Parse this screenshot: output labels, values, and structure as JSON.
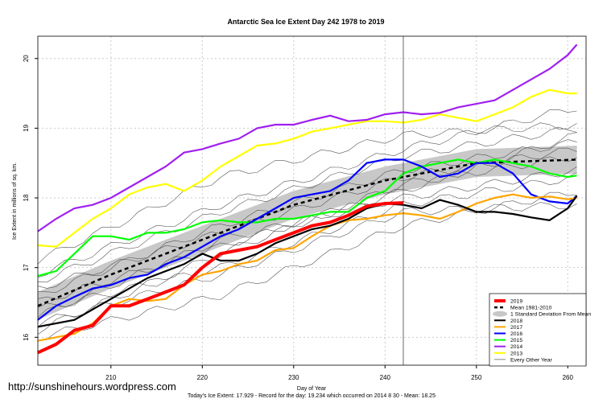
{
  "chart_data": {
    "type": "line",
    "title": "Antarctic Sea Ice Extent Day 242 1978 to 2019",
    "xlabel": "Day of Year",
    "ylabel": "Ice Extent in millions of sq. km.",
    "xlim": [
      202,
      262
    ],
    "ylim": [
      15.6,
      20.32
    ],
    "xticks": [
      210,
      220,
      230,
      240,
      250,
      260
    ],
    "yticks": [
      16,
      17,
      18,
      19,
      20
    ],
    "vline_day": 242,
    "grid": "dotted",
    "legend_position": "bottom-right",
    "footer": "Today's Ice Extent: 17.929  - Record for the day: 19.234 which occurred on 2014 8 30  - Mean: 18.25",
    "watermark": "http://sunshinehours.wordpress.com",
    "mean": {
      "name": "Mean 1981-2010",
      "x": [
        202,
        210,
        220,
        230,
        240,
        250,
        261
      ],
      "y": [
        16.45,
        16.9,
        17.4,
        17.9,
        18.25,
        18.5,
        18.55
      ]
    },
    "band": {
      "name": "1 Standard Deviation From Mean",
      "color": "#c8c8c8",
      "sd": 0.2
    },
    "series": [
      {
        "name": "2019",
        "color": "#ff0000",
        "x": [
          202,
          204,
          206,
          208,
          210,
          212,
          214,
          216,
          218,
          220,
          222,
          224,
          226,
          228,
          230,
          232,
          234,
          236,
          238,
          240,
          242
        ],
        "y": [
          15.78,
          15.9,
          16.1,
          16.17,
          16.45,
          16.45,
          16.55,
          16.65,
          16.75,
          17.0,
          17.2,
          17.25,
          17.3,
          17.4,
          17.5,
          17.6,
          17.65,
          17.75,
          17.88,
          17.92,
          17.93
        ]
      },
      {
        "name": "2018",
        "color": "#000000",
        "x": [
          202,
          206,
          210,
          214,
          218,
          220,
          222,
          224,
          226,
          228,
          230,
          232,
          234,
          236,
          238,
          240,
          242,
          244,
          246,
          248,
          250,
          252,
          254,
          256,
          258,
          260,
          261
        ],
        "y": [
          16.15,
          16.25,
          16.55,
          16.85,
          17.05,
          17.2,
          17.1,
          17.1,
          17.2,
          17.35,
          17.45,
          17.55,
          17.6,
          17.7,
          17.85,
          17.92,
          17.9,
          17.85,
          17.97,
          17.9,
          17.8,
          17.8,
          17.77,
          17.72,
          17.68,
          17.85,
          18.03
        ]
      },
      {
        "name": "2017",
        "color": "#ffa500",
        "x": [
          202,
          206,
          208,
          210,
          212,
          214,
          216,
          218,
          220,
          222,
          224,
          226,
          228,
          230,
          232,
          234,
          236,
          238,
          240,
          242,
          244,
          246,
          248,
          250,
          252,
          254,
          256,
          258,
          260,
          261
        ],
        "y": [
          15.95,
          16.05,
          16.2,
          16.45,
          16.55,
          16.52,
          16.55,
          16.75,
          16.9,
          16.95,
          17.05,
          17.1,
          17.25,
          17.28,
          17.45,
          17.6,
          17.68,
          17.7,
          17.75,
          17.78,
          17.75,
          17.7,
          17.8,
          17.92,
          18.0,
          18.05,
          18.0,
          18.02,
          17.98,
          18.0
        ]
      },
      {
        "name": "2016",
        "color": "#0000ff",
        "x": [
          202,
          204,
          206,
          208,
          210,
          212,
          214,
          216,
          218,
          220,
          222,
          224,
          226,
          228,
          230,
          232,
          234,
          236,
          238,
          240,
          242,
          244,
          246,
          248,
          250,
          252,
          254,
          256,
          258,
          260,
          261
        ],
        "y": [
          16.25,
          16.45,
          16.58,
          16.7,
          16.75,
          16.85,
          16.9,
          17.05,
          17.15,
          17.3,
          17.45,
          17.55,
          17.7,
          17.85,
          18.0,
          18.05,
          18.1,
          18.25,
          18.5,
          18.55,
          18.55,
          18.45,
          18.3,
          18.35,
          18.5,
          18.5,
          18.35,
          18.05,
          17.95,
          17.92,
          18.03
        ]
      },
      {
        "name": "2015",
        "color": "#00ff00",
        "x": [
          202,
          204,
          206,
          208,
          210,
          212,
          214,
          216,
          218,
          220,
          222,
          224,
          226,
          228,
          230,
          232,
          234,
          236,
          238,
          240,
          242,
          244,
          246,
          248,
          250,
          252,
          254,
          256,
          258,
          260,
          261
        ],
        "y": [
          16.88,
          16.95,
          17.2,
          17.45,
          17.45,
          17.4,
          17.5,
          17.5,
          17.55,
          17.65,
          17.68,
          17.65,
          17.65,
          17.7,
          17.7,
          17.75,
          17.8,
          17.8,
          18.0,
          18.1,
          18.35,
          18.45,
          18.5,
          18.55,
          18.5,
          18.55,
          18.5,
          18.45,
          18.35,
          18.3,
          18.32
        ]
      },
      {
        "name": "2014",
        "color": "#a020f0",
        "x": [
          202,
          204,
          206,
          208,
          210,
          212,
          214,
          216,
          218,
          220,
          222,
          224,
          226,
          228,
          230,
          232,
          234,
          236,
          238,
          240,
          242,
          244,
          246,
          248,
          250,
          252,
          254,
          256,
          258,
          260,
          261
        ],
        "y": [
          17.52,
          17.7,
          17.85,
          17.9,
          18.0,
          18.15,
          18.3,
          18.45,
          18.65,
          18.7,
          18.78,
          18.85,
          19.0,
          19.05,
          19.05,
          19.12,
          19.18,
          19.1,
          19.12,
          19.2,
          19.23,
          19.2,
          19.22,
          19.3,
          19.35,
          19.4,
          19.55,
          19.7,
          19.85,
          20.05,
          20.2
        ]
      },
      {
        "name": "2013",
        "color": "#ffff00",
        "x": [
          202,
          204,
          206,
          208,
          210,
          212,
          214,
          216,
          218,
          220,
          222,
          224,
          226,
          228,
          230,
          232,
          234,
          236,
          238,
          240,
          242,
          244,
          246,
          248,
          250,
          252,
          254,
          256,
          258,
          260,
          261
        ],
        "y": [
          17.32,
          17.3,
          17.5,
          17.7,
          17.85,
          18.05,
          18.15,
          18.2,
          18.1,
          18.25,
          18.45,
          18.6,
          18.75,
          18.78,
          18.85,
          18.95,
          19.0,
          19.05,
          19.1,
          19.1,
          19.08,
          19.12,
          19.2,
          19.15,
          19.1,
          19.2,
          19.3,
          19.45,
          19.55,
          19.5,
          19.5
        ]
      }
    ],
    "other_years_name": "Every Other Year",
    "other_years": [
      {
        "x": [
          202,
          222,
          242,
          261
        ],
        "y": [
          16.1,
          17.2,
          18.2,
          18.6
        ]
      },
      {
        "x": [
          202,
          222,
          242,
          261
        ],
        "y": [
          16.3,
          17.4,
          18.0,
          18.4
        ]
      },
      {
        "x": [
          202,
          222,
          242,
          261
        ],
        "y": [
          16.6,
          17.6,
          18.4,
          18.8
        ]
      },
      {
        "x": [
          202,
          222,
          242,
          261
        ],
        "y": [
          16.5,
          17.3,
          18.1,
          18.9
        ]
      },
      {
        "x": [
          202,
          222,
          242,
          261
        ],
        "y": [
          16.8,
          17.8,
          18.6,
          19.0
        ]
      },
      {
        "x": [
          202,
          222,
          242,
          261
        ],
        "y": [
          16.4,
          17.0,
          17.9,
          18.3
        ]
      },
      {
        "x": [
          202,
          222,
          242,
          261
        ],
        "y": [
          16.9,
          17.9,
          18.7,
          19.3
        ]
      },
      {
        "x": [
          202,
          222,
          242,
          261
        ],
        "y": [
          16.2,
          16.9,
          17.8,
          17.9
        ]
      },
      {
        "x": [
          202,
          222,
          242,
          261
        ],
        "y": [
          16.7,
          17.5,
          18.3,
          18.7
        ]
      },
      {
        "x": [
          202,
          222,
          242,
          261
        ],
        "y": [
          17.1,
          18.3,
          18.9,
          19.05
        ]
      },
      {
        "x": [
          202,
          222,
          242,
          261
        ],
        "y": [
          16.0,
          16.6,
          17.6,
          18.1
        ]
      }
    ]
  }
}
